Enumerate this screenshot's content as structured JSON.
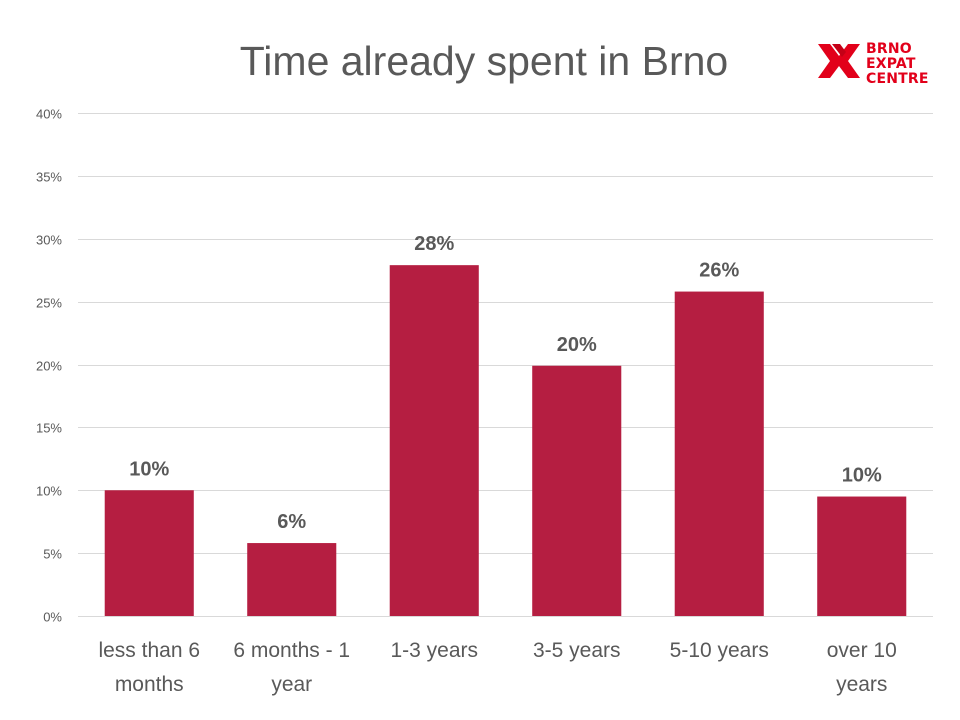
{
  "chart_data": {
    "type": "bar",
    "title": "Time already spent in Brno",
    "categories": [
      [
        "less than 6",
        "months"
      ],
      [
        "6 months - 1",
        "year"
      ],
      [
        "1-3 years"
      ],
      [
        "3-5 years"
      ],
      [
        "5-10 years"
      ],
      [
        "over 10",
        "years"
      ]
    ],
    "values": [
      10,
      5.8,
      27.9,
      19.9,
      25.8,
      9.5
    ],
    "data_labels": [
      "10%",
      "6%",
      "28%",
      "20%",
      "26%",
      "10%"
    ],
    "ylim": [
      0,
      40
    ],
    "y_ticks": [
      0,
      5,
      10,
      15,
      20,
      25,
      30,
      35,
      40
    ],
    "y_tick_labels": [
      "0%",
      "5%",
      "10%",
      "15%",
      "20%",
      "25%",
      "30%",
      "35%",
      "40%"
    ],
    "grid": true,
    "bar_color": "#b51e41",
    "grid_color": "#d9d9d9",
    "text_color": "#595959"
  },
  "logo": {
    "lines": [
      "BRNO",
      "EXPAT",
      "CENTRE"
    ],
    "color": "#e2001a"
  }
}
